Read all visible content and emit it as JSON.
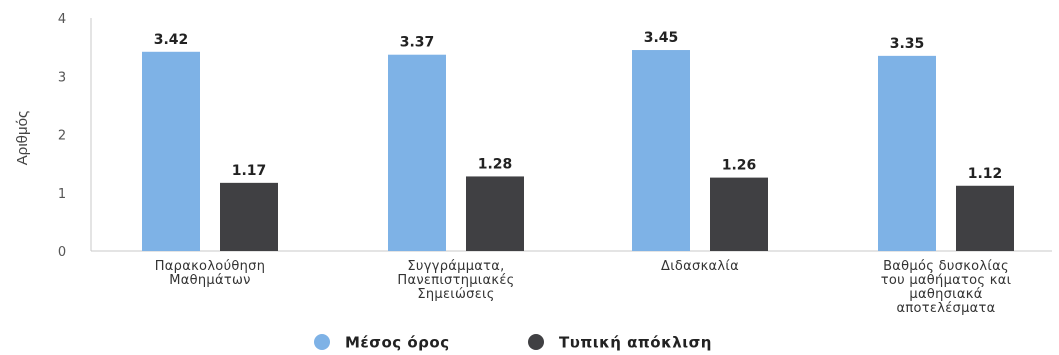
{
  "chart_data": {
    "type": "bar",
    "categories": [
      [
        "Παρακολούθηση",
        "Μαθημάτων"
      ],
      [
        "Συγγράμματα,",
        "Πανεπιστημιακές",
        "Σημειώσεις"
      ],
      [
        "Διδασκαλία"
      ],
      [
        "Βαθμός δυσκολίας",
        "του μαθήματος και",
        "μαθησιακά",
        "αποτελέσματα"
      ]
    ],
    "series": [
      {
        "name": "Μέσος όρος",
        "color": "#7eb2e6",
        "values": [
          3.42,
          3.37,
          3.45,
          3.35
        ],
        "labels": [
          "3.42",
          "3.37",
          "3.45",
          "3.35"
        ]
      },
      {
        "name": "Τυπική απόκλιση",
        "color": "#404043",
        "values": [
          1.17,
          1.28,
          1.26,
          1.12
        ],
        "labels": [
          "1.17",
          "1.28",
          "1.26",
          "1.12"
        ]
      }
    ],
    "ylabel": "Αριθμός",
    "xlabel": "",
    "ylim": [
      0,
      4
    ],
    "yticks": [
      "0",
      "1",
      "2",
      "3",
      "4"
    ],
    "legend_position": "bottom",
    "grid": false
  }
}
